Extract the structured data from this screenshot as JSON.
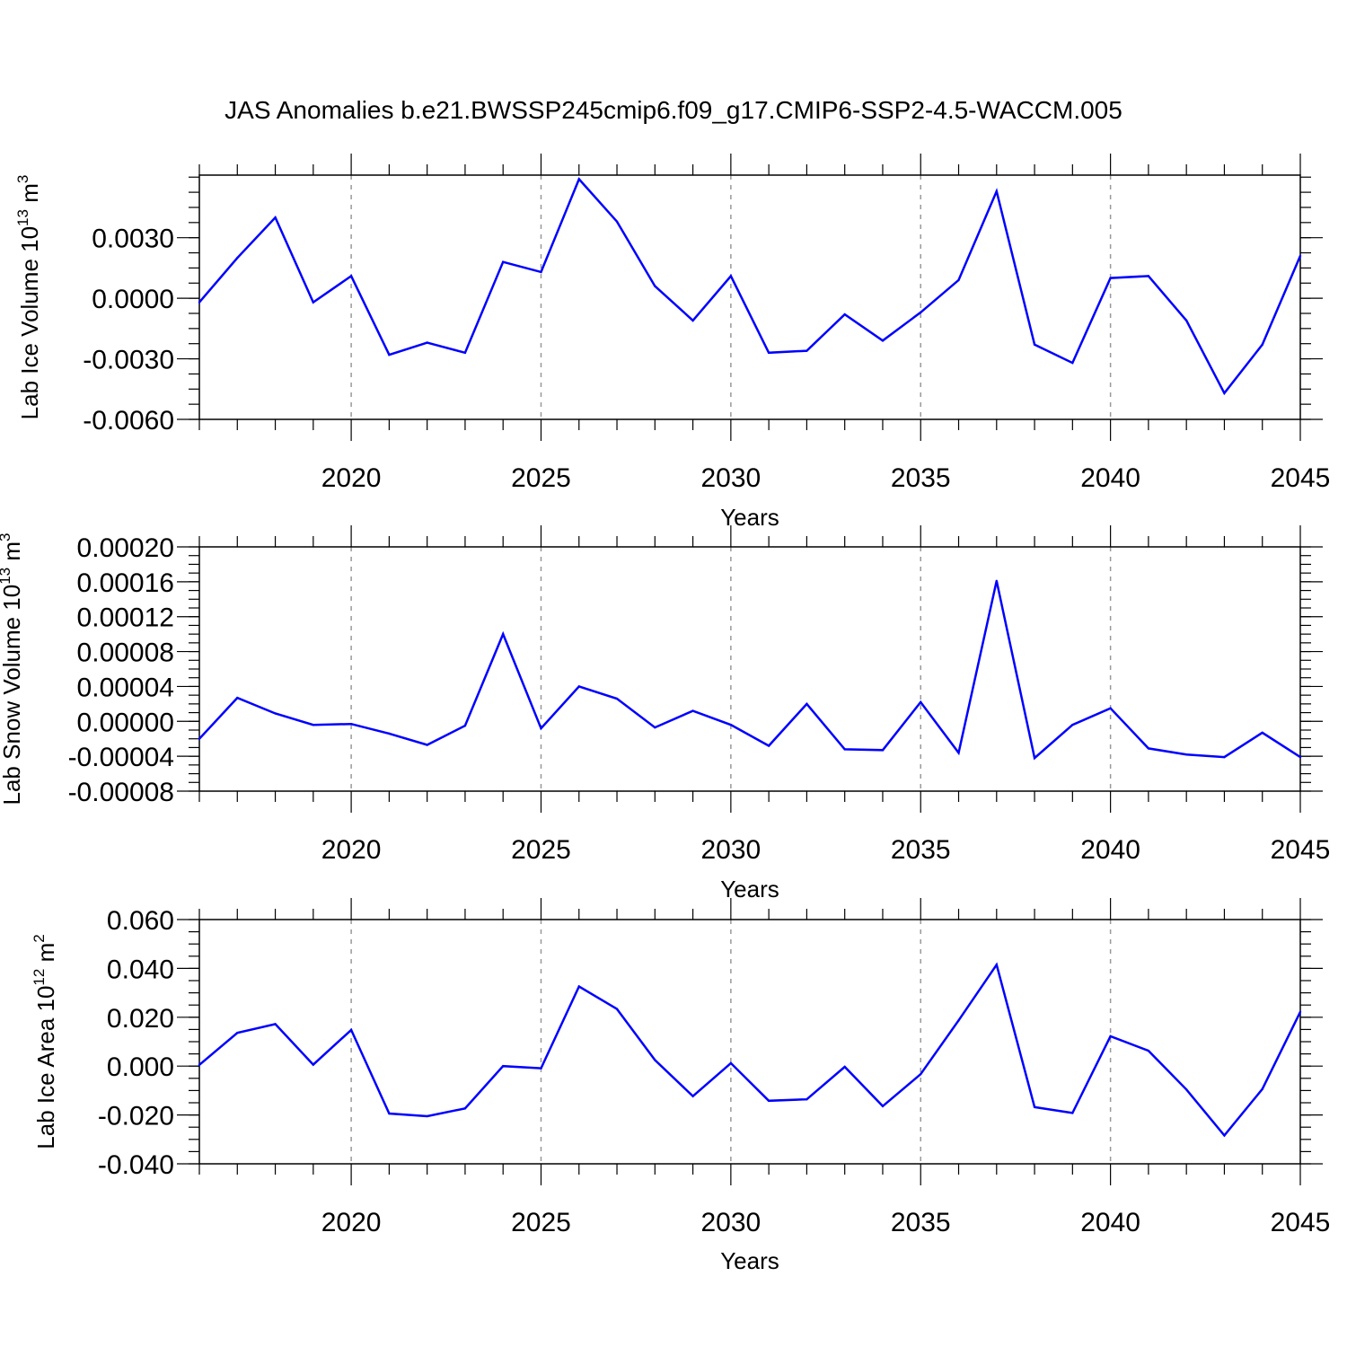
{
  "figure": {
    "title": "JAS Anomalies b.e21.BWSSP245cmip6.f09_g17.CMIP6-SSP2-4.5-WACCM.005"
  },
  "line_color": "#0000ff",
  "chart_data": [
    {
      "type": "line",
      "title": "JAS Anomalies b.e21.BWSSP245cmip6.f09_g17.CMIP6-SSP2-4.5-WACCM.005",
      "xlabel": "Years",
      "ylabel_main": "Lab Ice Volume 10",
      "ylabel_exp": "13",
      "ylabel_unit": " m",
      "ylabel_unit_exp": "3",
      "xlim": [
        2016,
        2045
      ],
      "ylim": [
        -0.006,
        0.0061
      ],
      "x_ticks": [
        "2020",
        "2025",
        "2030",
        "2035",
        "2040",
        "2045"
      ],
      "y_ticks": [
        "0.0030",
        "0.0000",
        "-0.0030",
        "-0.0060"
      ],
      "x": [
        2016,
        2017,
        2018,
        2019,
        2020,
        2021,
        2022,
        2023,
        2024,
        2025,
        2026,
        2027,
        2028,
        2029,
        2030,
        2031,
        2032,
        2033,
        2034,
        2035,
        2036,
        2037,
        2038,
        2039,
        2040,
        2041,
        2042,
        2043,
        2044,
        2045
      ],
      "values": [
        -0.0002,
        0.002,
        0.004,
        -0.0002,
        0.0011,
        -0.0028,
        -0.0022,
        -0.0027,
        0.0018,
        0.0013,
        0.0059,
        0.0038,
        0.0006,
        -0.0011,
        0.0011,
        -0.0027,
        -0.0026,
        -0.0008,
        -0.0021,
        -0.0007,
        0.0009,
        0.0053,
        -0.0023,
        -0.0032,
        0.001,
        0.0011,
        -0.0011,
        -0.0047,
        -0.0023,
        0.0021
      ]
    },
    {
      "type": "line",
      "xlabel": "Years",
      "ylabel_main": "Lab Snow Volume 10",
      "ylabel_exp": "13",
      "ylabel_unit": " m",
      "ylabel_unit_exp": "3",
      "xlim": [
        2016,
        2045
      ],
      "ylim": [
        -8e-05,
        0.0002
      ],
      "x_ticks": [
        "2020",
        "2025",
        "2030",
        "2035",
        "2040",
        "2045"
      ],
      "y_ticks": [
        "0.00020",
        "0.00016",
        "0.00012",
        "0.00008",
        "0.00004",
        "0.00000",
        "-0.00004",
        "-0.00008"
      ],
      "x": [
        2016,
        2017,
        2018,
        2019,
        2020,
        2021,
        2022,
        2023,
        2024,
        2025,
        2026,
        2027,
        2028,
        2029,
        2030,
        2031,
        2032,
        2033,
        2034,
        2035,
        2036,
        2037,
        2038,
        2039,
        2040,
        2041,
        2042,
        2043,
        2044,
        2045
      ],
      "values": [
        -2e-05,
        2.7e-05,
        9e-06,
        -4e-06,
        -3e-06,
        -1.4e-05,
        -2.7e-05,
        -5e-06,
        0.0001,
        -8e-06,
        4e-05,
        2.6e-05,
        -7e-06,
        1.2e-05,
        -4e-06,
        -2.8e-05,
        2e-05,
        -3.2e-05,
        -3.3e-05,
        2.2e-05,
        -3.6e-05,
        0.000161,
        -4.2e-05,
        -4e-06,
        1.5e-05,
        -3.1e-05,
        -3.8e-05,
        -4.1e-05,
        -1.3e-05,
        -4.1e-05
      ]
    },
    {
      "type": "line",
      "xlabel": "Years",
      "ylabel_main": "Lab Ice Area 10",
      "ylabel_exp": "12",
      "ylabel_unit": " m",
      "ylabel_unit_exp": "2",
      "xlim": [
        2016,
        2045
      ],
      "ylim": [
        -0.04,
        0.06
      ],
      "x_ticks": [
        "2020",
        "2025",
        "2030",
        "2035",
        "2040",
        "2045"
      ],
      "y_ticks": [
        "0.060",
        "0.040",
        "0.020",
        "0.000",
        "-0.020",
        "-0.040"
      ],
      "x": [
        2016,
        2017,
        2018,
        2019,
        2020,
        2021,
        2022,
        2023,
        2024,
        2025,
        2026,
        2027,
        2028,
        2029,
        2030,
        2031,
        2032,
        2033,
        2034,
        2035,
        2036,
        2037,
        2038,
        2039,
        2040,
        2041,
        2042,
        2043,
        2044,
        2045
      ],
      "values": [
        0.0005,
        0.0136,
        0.0172,
        0.0006,
        0.0148,
        -0.0194,
        -0.0205,
        -0.0173,
        0.0,
        -0.0009,
        0.0326,
        0.0234,
        0.0025,
        -0.0123,
        0.0012,
        -0.0142,
        -0.0136,
        -0.0003,
        -0.0164,
        -0.0033,
        0.0187,
        0.0415,
        -0.0168,
        -0.0192,
        0.0122,
        0.0063,
        -0.0096,
        -0.0284,
        -0.0094,
        0.0222
      ]
    }
  ]
}
